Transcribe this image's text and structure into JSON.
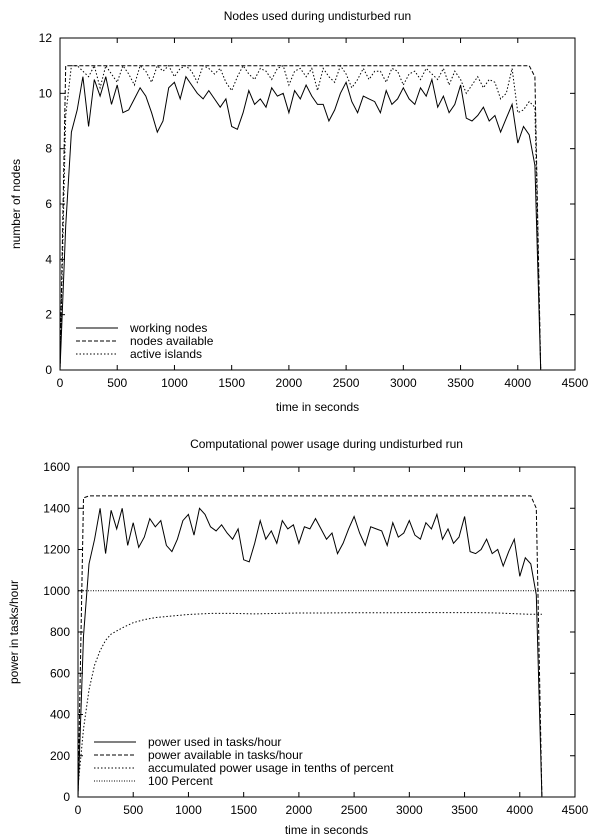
{
  "chart_data": [
    {
      "type": "line",
      "title": "Nodes used during undisturbed run",
      "xlabel": "time in seconds",
      "ylabel": "number of nodes",
      "xlim": [
        0,
        4500
      ],
      "ylim": [
        0,
        12
      ],
      "xticks": [
        0,
        500,
        1000,
        1500,
        2000,
        2500,
        3000,
        3500,
        4000,
        4500
      ],
      "yticks": [
        0,
        2,
        4,
        6,
        8,
        10,
        12
      ],
      "grid": false,
      "legend_position": "bottom-left",
      "series": [
        {
          "name": "working nodes",
          "style": "solid",
          "x": [
            0,
            50,
            100,
            150,
            200,
            250,
            300,
            350,
            400,
            450,
            500,
            550,
            600,
            650,
            700,
            750,
            800,
            850,
            900,
            950,
            1000,
            1050,
            1100,
            1150,
            1200,
            1250,
            1300,
            1350,
            1400,
            1450,
            1500,
            1550,
            1600,
            1650,
            1700,
            1750,
            1800,
            1850,
            1900,
            1950,
            2000,
            2050,
            2100,
            2150,
            2200,
            2250,
            2300,
            2350,
            2400,
            2450,
            2500,
            2550,
            2600,
            2650,
            2700,
            2750,
            2800,
            2850,
            2900,
            2950,
            3000,
            3050,
            3100,
            3150,
            3200,
            3250,
            3300,
            3350,
            3400,
            3450,
            3500,
            3550,
            3600,
            3650,
            3700,
            3750,
            3800,
            3850,
            3900,
            3950,
            4000,
            4050,
            4100,
            4150,
            4200
          ],
          "y": [
            0,
            5.2,
            8.6,
            9.4,
            10.6,
            8.8,
            10.5,
            9.9,
            10.6,
            9.6,
            10.3,
            9.3,
            9.4,
            9.8,
            10.2,
            9.9,
            9.3,
            8.6,
            9.0,
            10.2,
            10.4,
            9.8,
            10.6,
            10.3,
            10.0,
            9.8,
            10.1,
            9.8,
            9.5,
            9.8,
            8.8,
            8.7,
            9.3,
            10.1,
            9.6,
            9.8,
            9.5,
            10.2,
            9.9,
            10.0,
            9.3,
            10.1,
            9.8,
            10.3,
            9.9,
            9.6,
            9.6,
            9.0,
            9.4,
            10.0,
            10.4,
            9.7,
            9.3,
            9.9,
            9.8,
            9.7,
            9.3,
            10.1,
            9.6,
            9.8,
            10.2,
            9.8,
            9.6,
            10.2,
            9.9,
            10.5,
            9.5,
            9.9,
            9.3,
            9.6,
            10.3,
            9.1,
            9.0,
            9.2,
            9.5,
            9.0,
            9.2,
            8.6,
            9.1,
            9.6,
            8.2,
            8.8,
            8.5,
            7.4,
            0
          ]
        },
        {
          "name": "nodes available",
          "style": "dashed",
          "x": [
            0,
            50,
            100,
            4000,
            4100,
            4150,
            4200
          ],
          "y": [
            0,
            11,
            11,
            11,
            11,
            10.6,
            0
          ]
        },
        {
          "name": "active islands",
          "style": "dotted",
          "x": [
            0,
            50,
            100,
            150,
            200,
            250,
            300,
            350,
            400,
            450,
            500,
            550,
            600,
            650,
            700,
            750,
            800,
            850,
            900,
            950,
            1000,
            1050,
            1100,
            1150,
            1200,
            1250,
            1300,
            1350,
            1400,
            1450,
            1500,
            1550,
            1600,
            1650,
            1700,
            1750,
            1800,
            1850,
            1900,
            1950,
            2000,
            2050,
            2100,
            2150,
            2200,
            2250,
            2300,
            2350,
            2400,
            2450,
            2500,
            2550,
            2600,
            2650,
            2700,
            2750,
            2800,
            2850,
            2900,
            2950,
            3000,
            3050,
            3100,
            3150,
            3200,
            3250,
            3300,
            3350,
            3400,
            3450,
            3500,
            3550,
            3600,
            3650,
            3700,
            3750,
            3800,
            3850,
            3900,
            3950,
            4000,
            4050,
            4100,
            4150,
            4200
          ],
          "y": [
            0,
            9.2,
            11.0,
            11.0,
            10.8,
            10.6,
            11.0,
            10.2,
            11.0,
            10.7,
            10.4,
            11.0,
            10.7,
            10.3,
            11.0,
            10.8,
            10.4,
            11.0,
            10.8,
            11.0,
            10.6,
            10.9,
            11.0,
            10.8,
            10.4,
            11.0,
            10.9,
            10.7,
            10.9,
            10.4,
            10.1,
            10.6,
            11.0,
            10.7,
            10.5,
            10.9,
            10.8,
            10.5,
            10.9,
            11.0,
            10.3,
            10.8,
            10.9,
            10.6,
            10.9,
            10.1,
            10.9,
            10.6,
            10.4,
            11.0,
            10.7,
            10.2,
            10.5,
            10.9,
            10.5,
            10.8,
            10.8,
            10.4,
            10.9,
            10.8,
            10.3,
            10.7,
            10.8,
            10.5,
            10.9,
            10.7,
            10.5,
            10.9,
            10.3,
            10.8,
            10.5,
            10.0,
            10.3,
            10.6,
            10.2,
            10.5,
            10.4,
            9.8,
            10.0,
            10.9,
            9.3,
            9.4,
            9.7,
            9.5,
            0
          ]
        }
      ]
    },
    {
      "type": "line",
      "title": "Computational power usage during undisturbed run",
      "xlabel": "time in seconds",
      "ylabel": "power in tasks/hour",
      "xlim": [
        0,
        4500
      ],
      "ylim": [
        0,
        1600
      ],
      "xticks": [
        0,
        500,
        1000,
        1500,
        2000,
        2500,
        3000,
        3500,
        4000,
        4500
      ],
      "yticks": [
        0,
        200,
        400,
        600,
        800,
        1000,
        1200,
        1400,
        1600
      ],
      "grid": false,
      "legend_position": "bottom-left",
      "series": [
        {
          "name": "power used in tasks/hour",
          "style": "solid",
          "x": [
            0,
            50,
            100,
            150,
            200,
            250,
            300,
            350,
            400,
            450,
            500,
            550,
            600,
            650,
            700,
            750,
            800,
            850,
            900,
            950,
            1000,
            1050,
            1100,
            1150,
            1200,
            1250,
            1300,
            1350,
            1400,
            1450,
            1500,
            1550,
            1600,
            1650,
            1700,
            1750,
            1800,
            1850,
            1900,
            1950,
            2000,
            2050,
            2100,
            2150,
            2200,
            2250,
            2300,
            2350,
            2400,
            2450,
            2500,
            2550,
            2600,
            2650,
            2700,
            2750,
            2800,
            2850,
            2900,
            2950,
            3000,
            3050,
            3100,
            3150,
            3200,
            3250,
            3300,
            3350,
            3400,
            3450,
            3500,
            3550,
            3600,
            3650,
            3700,
            3750,
            3800,
            3850,
            3900,
            3950,
            4000,
            4050,
            4100,
            4150,
            4200
          ],
          "y": [
            0,
            780,
            1130,
            1250,
            1400,
            1180,
            1390,
            1300,
            1400,
            1220,
            1330,
            1210,
            1260,
            1350,
            1310,
            1340,
            1220,
            1190,
            1250,
            1340,
            1370,
            1270,
            1400,
            1370,
            1310,
            1290,
            1320,
            1280,
            1250,
            1300,
            1150,
            1140,
            1230,
            1340,
            1250,
            1290,
            1230,
            1340,
            1300,
            1320,
            1230,
            1310,
            1300,
            1350,
            1300,
            1250,
            1280,
            1180,
            1230,
            1300,
            1360,
            1280,
            1220,
            1310,
            1300,
            1290,
            1220,
            1330,
            1260,
            1280,
            1340,
            1270,
            1250,
            1330,
            1300,
            1370,
            1250,
            1300,
            1230,
            1260,
            1360,
            1190,
            1180,
            1200,
            1250,
            1180,
            1200,
            1120,
            1190,
            1250,
            1070,
            1160,
            1130,
            980,
            0
          ]
        },
        {
          "name": "power available in tasks/hour",
          "style": "dashed",
          "x": [
            0,
            50,
            100,
            4000,
            4100,
            4150,
            4200
          ],
          "y": [
            0,
            1450,
            1460,
            1460,
            1460,
            1400,
            0
          ]
        },
        {
          "name": "accumulated power usage in tenths of percent",
          "style": "dotted",
          "x": [
            0,
            50,
            100,
            150,
            200,
            250,
            300,
            400,
            500,
            600,
            700,
            800,
            900,
            1000,
            1200,
            1400,
            1600,
            1800,
            2000,
            2200,
            2400,
            2600,
            2800,
            3000,
            3200,
            3400,
            3600,
            3800,
            4000,
            4100,
            4200
          ],
          "y": [
            50,
            330,
            520,
            640,
            710,
            760,
            790,
            820,
            845,
            860,
            870,
            875,
            880,
            885,
            890,
            890,
            888,
            890,
            892,
            892,
            893,
            893,
            893,
            894,
            894,
            894,
            894,
            892,
            888,
            886,
            886
          ]
        },
        {
          "name": "100 Percent",
          "style": "fine-dotted",
          "x": [
            0,
            4500
          ],
          "y": [
            1000,
            1000
          ]
        }
      ]
    }
  ]
}
